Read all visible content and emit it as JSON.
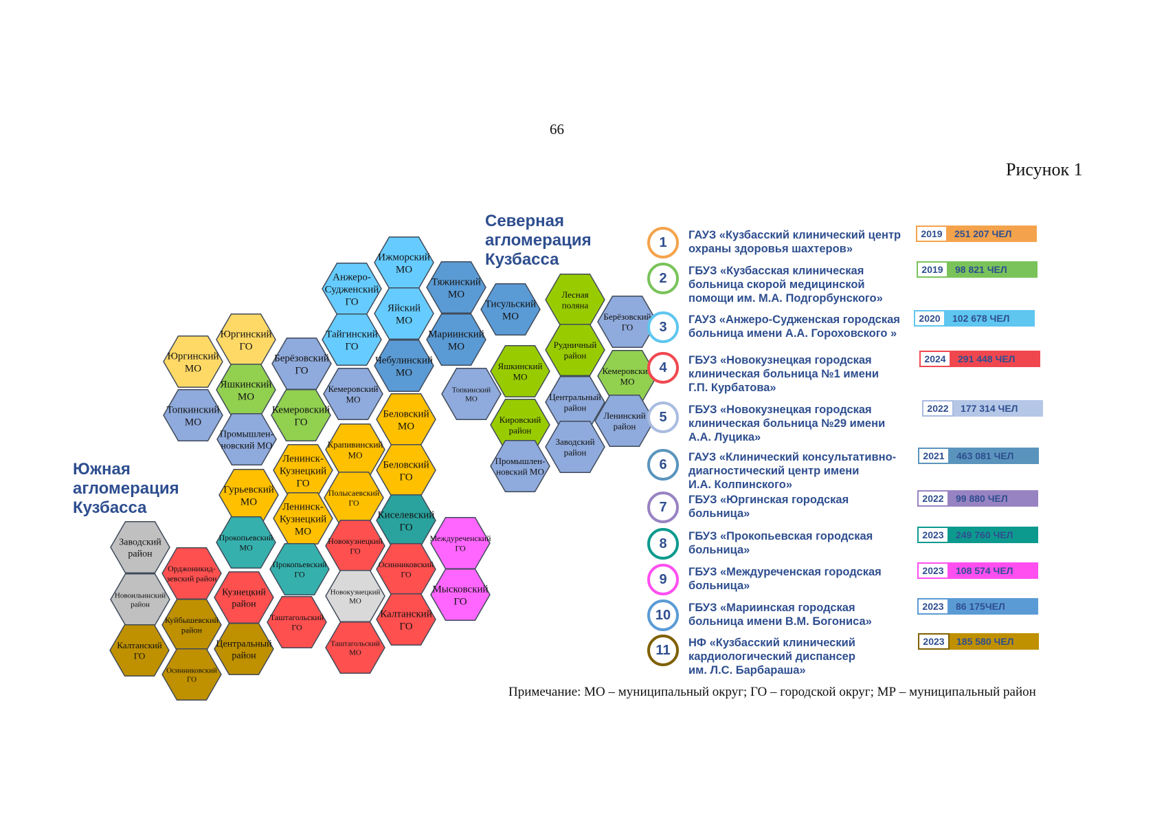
{
  "page_number": "66",
  "figure_label": "Рисунок 1",
  "north_title": "Северная\nагломерация\nКузбасса",
  "south_title": "Южная\nагломерация\nКузбасса",
  "note": "Примечание: МО – муниципальный округ; ГО – городской округ; МР – муниципальный район",
  "colors": {
    "skyblue": "#66ccff",
    "steelblue": "#5b9bd5",
    "periwinkle": "#8faadc",
    "yellow": "#ffd966",
    "lightgreen": "#92d050",
    "olivegreen": "#99cc00",
    "orange": "#ffc000",
    "teal": "#36b0ad",
    "tealdark": "#2aa39e",
    "red": "#ff5050",
    "magenta": "#ff66ff",
    "gray": "#c0c0c0",
    "lightgray": "#d9d9d9",
    "gold": "#bf9000"
  },
  "hexes": [
    {
      "label": "Ижморский\nМО",
      "color": "skyblue",
      "size": 15
    },
    {
      "label": "Анжеро-\nСудженский\nГО",
      "color": "skyblue",
      "size": 15
    },
    {
      "label": "Тяжинский\nМО",
      "color": "steelblue",
      "size": 15
    },
    {
      "label": "Яйский\nМО",
      "color": "skyblue",
      "size": 15
    },
    {
      "label": "Тисульский\nМО",
      "color": "steelblue",
      "size": 15
    },
    {
      "label": "Тайгинский\nГО",
      "color": "skyblue",
      "size": 15
    },
    {
      "label": "Мариинский\nМО",
      "color": "steelblue",
      "size": 15
    },
    {
      "label": "Юргинский\nГО",
      "color": "yellow",
      "size": 15
    },
    {
      "label": "Юргинский\nМО",
      "color": "yellow",
      "size": 15
    },
    {
      "label": "Берёзовский\nГО",
      "color": "periwinkle",
      "size": 15
    },
    {
      "label": "Чебулинский\nМО",
      "color": "steelblue",
      "size": 15
    },
    {
      "label": "Яшкинский\nМО",
      "color": "lightgreen",
      "size": 15
    },
    {
      "label": "Кемеровский\nМО",
      "color": "periwinkle",
      "size": 13
    },
    {
      "label": "Топкинский\nМО",
      "color": "periwinkle",
      "size": 15
    },
    {
      "label": "Кемеровский\nГО",
      "color": "lightgreen",
      "size": 15
    },
    {
      "label": "Беловский\nМО",
      "color": "orange",
      "size": 15
    },
    {
      "label": "Промышлен-\nновский МО",
      "color": "periwinkle",
      "size": 14
    },
    {
      "label": "Крапивинский\nМО",
      "color": "orange",
      "size": 13
    },
    {
      "label": "Ленинск-\nКузнецкий\nГО",
      "color": "orange",
      "size": 15
    },
    {
      "label": "Беловский\nГО",
      "color": "orange",
      "size": 15
    },
    {
      "label": "Гурьевский\nМО",
      "color": "orange",
      "size": 15
    },
    {
      "label": "Полысаевский\nГО",
      "color": "orange",
      "size": 12
    },
    {
      "label": "Ленинск-\nКузнецкий\nМО",
      "color": "orange",
      "size": 15
    },
    {
      "label": "Киселевский\nГО",
      "color": "tealdark",
      "size": 15
    },
    {
      "label": "Прокопьевский\nМО",
      "color": "teal",
      "size": 12
    },
    {
      "label": "Новокузнецкий\nГО",
      "color": "red",
      "size": 12
    },
    {
      "label": "Междуреченский\nГО",
      "color": "magenta",
      "size": 12
    },
    {
      "label": "Прокопьевский\nГО",
      "color": "teal",
      "size": 12
    },
    {
      "label": "Осинниковский\nГО",
      "color": "red",
      "size": 12
    },
    {
      "label": "Заводский\nрайон",
      "color": "gray",
      "size": 14
    },
    {
      "label": "Орджоникид-\nзевский район",
      "color": "red",
      "size": 12
    },
    {
      "label": "Новоильинский\nрайон",
      "color": "gray",
      "size": 11
    },
    {
      "label": "Кузнецкий\nрайон",
      "color": "red",
      "size": 14
    },
    {
      "label": "Новокузнецкий\nМО",
      "color": "lightgray",
      "size": 11
    },
    {
      "label": "Мысковский\nГО",
      "color": "magenta",
      "size": 15
    },
    {
      "label": "Таштагольский\nГО",
      "color": "red",
      "size": 12
    },
    {
      "label": "Калтанский\nГО",
      "color": "red",
      "size": 15
    },
    {
      "label": "Куйбышевский\nрайон",
      "color": "gold",
      "size": 12
    },
    {
      "label": "Калтанский\nГО",
      "color": "gold",
      "size": 13
    },
    {
      "label": "Центральный\nрайон",
      "color": "gold",
      "size": 14
    },
    {
      "label": "Таштагольский\nМО",
      "color": "red",
      "size": 11
    },
    {
      "label": "Осинниковский\nГО",
      "color": "gold",
      "size": 11
    },
    {
      "label": "Лесная\nполяна",
      "color": "olivegreen",
      "size": 13
    },
    {
      "label": "Берёзовский\nГО",
      "color": "periwinkle",
      "size": 13
    },
    {
      "label": "Рудничный\nрайон",
      "color": "olivegreen",
      "size": 13
    },
    {
      "label": "Яшкинский\nМО",
      "color": "olivegreen",
      "size": 13
    },
    {
      "label": "Кемеровский\nМО",
      "color": "lightgreen",
      "size": 13
    },
    {
      "label": "Топкинский\nМО",
      "color": "periwinkle",
      "size": 11
    },
    {
      "label": "Центральный\nрайон",
      "color": "periwinkle",
      "size": 13
    },
    {
      "label": "Ленинский\nрайон",
      "color": "periwinkle",
      "size": 13
    },
    {
      "label": "Кировский\nрайон",
      "color": "olivegreen",
      "size": 13
    },
    {
      "label": "Заводский\nрайон",
      "color": "periwinkle",
      "size": 13
    },
    {
      "label": "Промышлен-\nновский МО",
      "color": "periwinkle",
      "size": 13
    }
  ],
  "legend": [
    {
      "num": "1",
      "ring": "#f4a34c",
      "name": "ГАУЗ «Кузбасский клинический центр\nохраны здоровья шахтеров»",
      "year": "2019",
      "count": "251 207 ЧЕЛ",
      "fill": "#f4a34c"
    },
    {
      "num": "2",
      "ring": "#7ac35a",
      "name": "ГБУЗ «Кузбасская клиническая\nбольница скорой медицинской\nпомощи им. М.А. Подгорбунского»",
      "year": "2019",
      "count": "98 821 ЧЕЛ",
      "fill": "#7ac35a"
    },
    {
      "num": "3",
      "ring": "#5ec6ef",
      "name": "ГАУЗ «Анжеро-Судженская городская\nбольница имени А.А. Гороховского »",
      "year": "2020",
      "count": "102 678 ЧЕЛ",
      "fill": "#5ec6ef"
    },
    {
      "num": "4",
      "ring": "#f0474f",
      "name": "ГБУЗ «Новокузнецкая городская\nклиническая больница №1 имени\nГ.П. Курбатова»",
      "year": "2024",
      "count": "291 448 ЧЕЛ",
      "fill": "#f0474f"
    },
    {
      "num": "5",
      "ring": "#a9bce0",
      "name": "ГБУЗ «Новокузнецкая городская\nклиническая больница №29 имени\nА.А. Луцика»",
      "year": "2022",
      "count": "177 314 ЧЕЛ",
      "fill": "#b4c7e7"
    },
    {
      "num": "6",
      "ring": "#5a94bd",
      "name": "ГАУЗ «Клинический консультативно-\nдиагностический центр имени\nИ.А. Колпинского»",
      "year": "2021",
      "count": "463 081 ЧЕЛ",
      "fill": "#5a94bd"
    },
    {
      "num": "7",
      "ring": "#9883c2",
      "name": "ГБУЗ «Юргинская городская\nбольница»",
      "year": "2022",
      "count": "99 880 ЧЕЛ",
      "fill": "#9883c2"
    },
    {
      "num": "8",
      "ring": "#0d9a8e",
      "name": "ГБУЗ «Прокопьевская городская\nбольница»",
      "year": "2023",
      "count": "249 760 ЧЕЛ",
      "fill": "#0d9a8e"
    },
    {
      "num": "9",
      "ring": "#ff4ff0",
      "name": "ГБУЗ «Междуреченская городская\nбольница»",
      "year": "2023",
      "count": "108 574 ЧЕЛ",
      "fill": "#ff4ff0"
    },
    {
      "num": "10",
      "ring": "#5b9bd5",
      "name": "ГБУЗ «Мариинская городская\nбольница имени В.М. Богониса»",
      "year": "2023",
      "count": "86 175ЧЕЛ",
      "fill": "#5b9bd5"
    },
    {
      "num": "11",
      "ring": "#7f6000",
      "name": "НФ «Кузбасский клинический\nкардиологический диспансер\nим. Л.С. Барбараша»",
      "year": "2023",
      "count": "185 580 ЧЕЛ",
      "fill": "#bf9000"
    }
  ]
}
